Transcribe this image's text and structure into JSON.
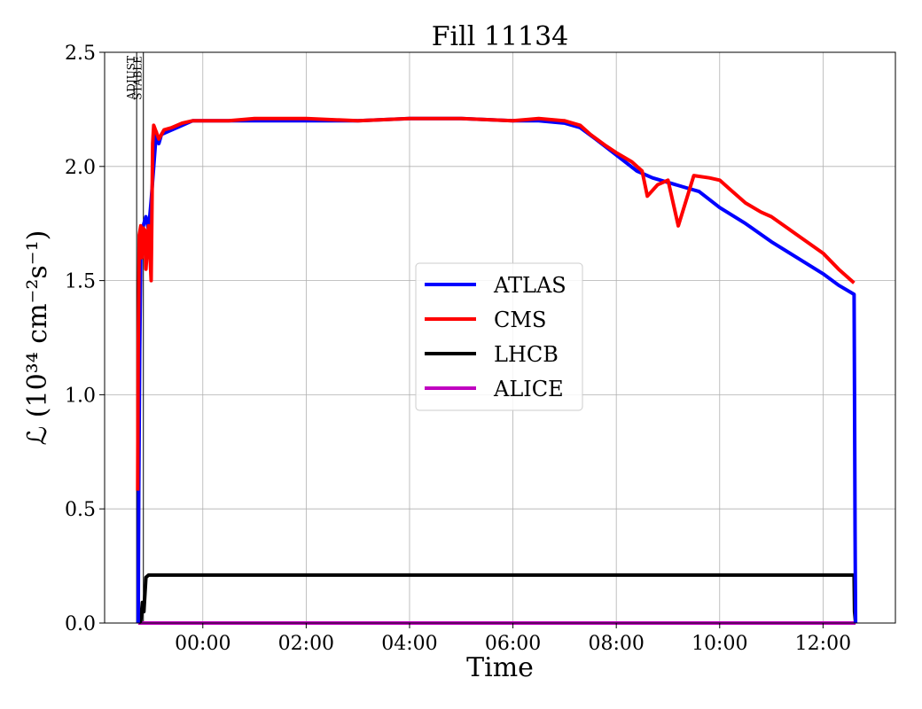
{
  "chart_data": {
    "type": "line",
    "title": "Fill 11134",
    "xlabel": "Time",
    "ylabel": "ℒ (10³⁴ cm⁻²s⁻¹)",
    "xlim": [
      -1.9,
      13.4
    ],
    "ylim": [
      0,
      2.5
    ],
    "x_ticks": [
      0,
      2,
      4,
      6,
      8,
      10,
      12
    ],
    "x_tick_labels": [
      "00:00",
      "02:00",
      "04:00",
      "06:00",
      "08:00",
      "10:00",
      "12:00"
    ],
    "y_ticks": [
      0,
      0.5,
      1.0,
      1.5,
      2.0,
      2.5
    ],
    "y_tick_labels": [
      "0.0",
      "0.5",
      "1.0",
      "1.5",
      "2.0",
      "2.5"
    ],
    "grid": true,
    "legend_position": "center-right",
    "markers": [
      {
        "label": "ADJUST",
        "x": -1.28
      },
      {
        "label": "STABLE",
        "x": -1.15
      }
    ],
    "series": [
      {
        "name": "ATLAS",
        "color": "#0000ff",
        "x": [
          -1.25,
          -1.24,
          -1.22,
          -1.2,
          -1.17,
          -1.14,
          -1.1,
          -1.05,
          -1.0,
          -0.95,
          -0.9,
          -0.85,
          -0.8,
          -0.6,
          -0.4,
          -0.2,
          0.0,
          0.5,
          1.0,
          2.0,
          3.0,
          4.0,
          5.0,
          6.0,
          6.5,
          7.0,
          7.3,
          7.6,
          8.0,
          8.4,
          8.7,
          9.0,
          9.3,
          9.6,
          10.0,
          10.5,
          11.0,
          11.5,
          12.0,
          12.3,
          12.6,
          12.61,
          12.62,
          12.63
        ],
        "y": [
          0.0,
          0.57,
          1.2,
          1.6,
          1.72,
          1.75,
          1.78,
          1.72,
          1.85,
          2.0,
          2.15,
          2.1,
          2.14,
          2.16,
          2.18,
          2.2,
          2.2,
          2.2,
          2.2,
          2.2,
          2.2,
          2.21,
          2.21,
          2.2,
          2.2,
          2.19,
          2.17,
          2.12,
          2.05,
          1.98,
          1.95,
          1.93,
          1.91,
          1.89,
          1.82,
          1.75,
          1.67,
          1.6,
          1.53,
          1.48,
          1.44,
          1.0,
          0.4,
          0.0
        ]
      },
      {
        "name": "CMS",
        "color": "#ff0000",
        "x": [
          -1.26,
          -1.25,
          -1.23,
          -1.2,
          -1.18,
          -1.15,
          -1.12,
          -1.1,
          -1.05,
          -1.0,
          -0.97,
          -0.95,
          -0.9,
          -0.85,
          -0.75,
          -0.6,
          -0.4,
          -0.2,
          0.0,
          0.5,
          1.0,
          2.0,
          3.0,
          4.0,
          5.0,
          6.0,
          6.5,
          7.0,
          7.3,
          7.5,
          7.8,
          8.0,
          8.3,
          8.5,
          8.6,
          8.8,
          9.0,
          9.2,
          9.5,
          9.8,
          10.0,
          10.2,
          10.5,
          10.8,
          11.0,
          11.5,
          12.0,
          12.3,
          12.6
        ],
        "y": [
          0.58,
          1.2,
          1.7,
          1.74,
          1.6,
          1.73,
          1.72,
          1.55,
          1.74,
          1.5,
          2.1,
          2.18,
          2.15,
          2.12,
          2.16,
          2.17,
          2.19,
          2.2,
          2.2,
          2.2,
          2.21,
          2.21,
          2.2,
          2.21,
          2.21,
          2.2,
          2.21,
          2.2,
          2.18,
          2.14,
          2.09,
          2.06,
          2.02,
          1.98,
          1.87,
          1.92,
          1.94,
          1.74,
          1.96,
          1.95,
          1.94,
          1.9,
          1.84,
          1.8,
          1.78,
          1.7,
          1.62,
          1.55,
          1.49
        ]
      },
      {
        "name": "LHCB",
        "color": "#000000",
        "x": [
          -1.24,
          -1.2,
          -1.17,
          -1.14,
          -1.1,
          -1.05,
          -1.0,
          0.0,
          2.0,
          4.0,
          6.0,
          8.0,
          10.0,
          12.0,
          12.6,
          12.61,
          12.63
        ],
        "y": [
          0.0,
          0.01,
          0.09,
          0.05,
          0.2,
          0.21,
          0.21,
          0.21,
          0.21,
          0.21,
          0.21,
          0.21,
          0.21,
          0.21,
          0.21,
          0.05,
          0.0
        ]
      },
      {
        "name": "ALICE",
        "color": "#c000c0",
        "x": [
          -1.25,
          12.63
        ],
        "y": [
          0.0,
          0.0
        ]
      }
    ]
  }
}
